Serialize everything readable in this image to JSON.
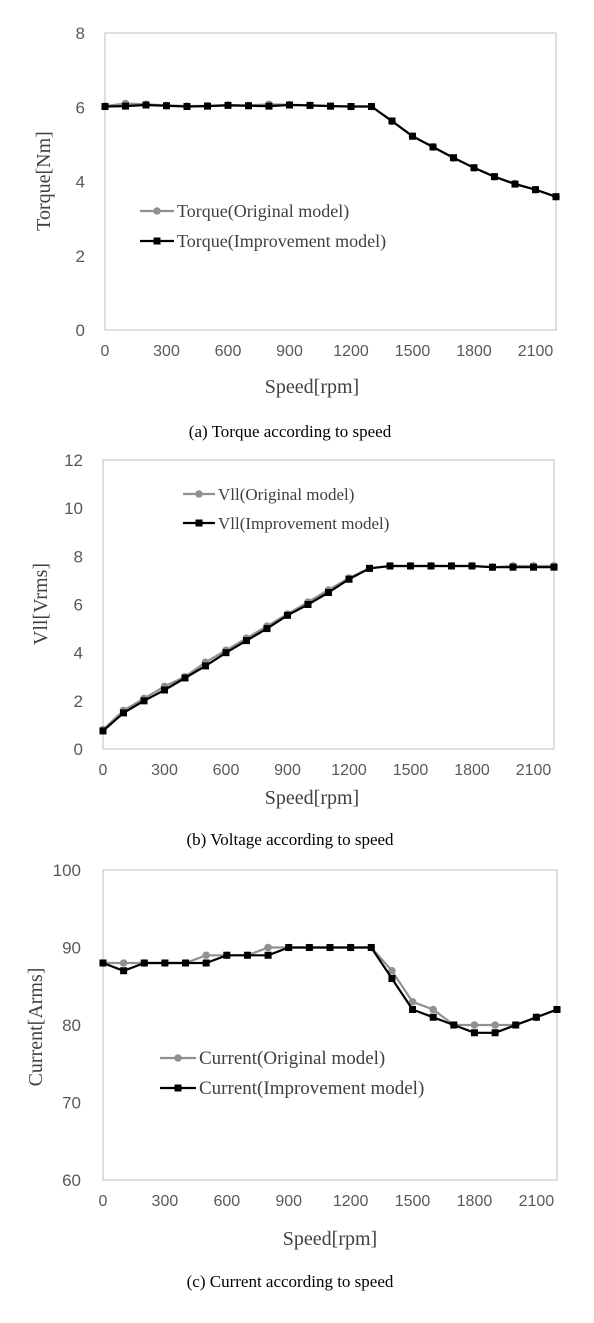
{
  "chart_data": [
    {
      "type": "line",
      "ylabel": "Torque[Nm]",
      "xlabel": "Speed[rpm]",
      "caption": "(a)  Torque  according  to  speed",
      "x": [
        0,
        100,
        200,
        300,
        400,
        500,
        600,
        700,
        800,
        900,
        1000,
        1100,
        1200,
        1300,
        1400,
        1500,
        1600,
        1700,
        1800,
        1900,
        2000,
        2100,
        2200
      ],
      "xticks": [
        "0",
        "300",
        "600",
        "900",
        "1200",
        "1500",
        "1800",
        "2100"
      ],
      "xlim": [
        0,
        2200
      ],
      "yticks": [
        "0",
        "2",
        "4",
        "6",
        "8"
      ],
      "ylim": [
        0,
        8
      ],
      "grid": false,
      "legend_position": "center-left",
      "series": [
        {
          "name": "Torque(Original model)",
          "color": "#909090",
          "marker": "circle",
          "values": [
            6.03,
            6.1,
            6.08,
            6.05,
            6.03,
            6.04,
            6.06,
            6.05,
            6.08,
            6.07,
            6.05,
            6.03,
            6.02,
            6.02,
            5.62,
            5.22,
            4.93,
            4.63,
            4.37,
            4.13,
            3.94,
            3.78,
            3.59
          ]
        },
        {
          "name": "Torque(Improvement model)",
          "color": "#000000",
          "marker": "square",
          "values": [
            6.02,
            6.03,
            6.06,
            6.04,
            6.02,
            6.03,
            6.05,
            6.04,
            6.03,
            6.06,
            6.05,
            6.03,
            6.02,
            6.02,
            5.63,
            5.22,
            4.93,
            4.64,
            4.37,
            4.13,
            3.93,
            3.78,
            3.59
          ]
        }
      ]
    },
    {
      "type": "line",
      "ylabel": "Vll[Vrms]",
      "xlabel": "Speed[rpm]",
      "caption": "(b)  Voltage  according  to  speed",
      "x": [
        0,
        100,
        200,
        300,
        400,
        500,
        600,
        700,
        800,
        900,
        1000,
        1100,
        1200,
        1300,
        1400,
        1500,
        1600,
        1700,
        1800,
        1900,
        2000,
        2100,
        2200
      ],
      "xticks": [
        "0",
        "300",
        "600",
        "900",
        "1200",
        "1500",
        "1800",
        "2100"
      ],
      "xlim": [
        0,
        2200
      ],
      "yticks": [
        "0",
        "2",
        "4",
        "6",
        "8",
        "10",
        "12"
      ],
      "ylim": [
        0,
        12
      ],
      "grid": false,
      "legend_position": "top-center",
      "series": [
        {
          "name": "Vll(Original model)",
          "color": "#909090",
          "marker": "circle",
          "values": [
            0.8,
            1.6,
            2.1,
            2.6,
            3.0,
            3.6,
            4.1,
            4.6,
            5.1,
            5.6,
            6.1,
            6.6,
            7.1,
            7.5,
            7.6,
            7.6,
            7.6,
            7.6,
            7.6,
            7.55,
            7.6,
            7.6,
            7.6
          ]
        },
        {
          "name": "Vll(Improvement model)",
          "color": "#000000",
          "marker": "square",
          "values": [
            0.75,
            1.5,
            2.0,
            2.45,
            2.95,
            3.45,
            4.0,
            4.5,
            5.0,
            5.55,
            6.0,
            6.5,
            7.05,
            7.5,
            7.6,
            7.6,
            7.6,
            7.6,
            7.6,
            7.55,
            7.55,
            7.55,
            7.55
          ]
        }
      ]
    },
    {
      "type": "line",
      "ylabel": "Current[Arms]",
      "xlabel": "Speed[rpm]",
      "caption": "(c)  Current  according  to  speed",
      "x": [
        0,
        100,
        200,
        300,
        400,
        500,
        600,
        700,
        800,
        900,
        1000,
        1100,
        1200,
        1300,
        1400,
        1500,
        1600,
        1700,
        1800,
        1900,
        2000,
        2100,
        2200
      ],
      "xticks": [
        "0",
        "300",
        "600",
        "900",
        "1200",
        "1500",
        "1800",
        "2100"
      ],
      "xlim": [
        0,
        2200
      ],
      "yticks": [
        "60",
        "70",
        "80",
        "90",
        "100"
      ],
      "ylim": [
        60,
        100
      ],
      "grid": false,
      "legend_position": "bottom-center",
      "series": [
        {
          "name": "Current(Original model)",
          "color": "#909090",
          "marker": "circle",
          "values": [
            88,
            88,
            88,
            88,
            88,
            89,
            89,
            89,
            90,
            90,
            90,
            90,
            90,
            90,
            87,
            83,
            82,
            80,
            80,
            80,
            80,
            81,
            82
          ]
        },
        {
          "name": "Current(Improvement model)",
          "color": "#000000",
          "marker": "square",
          "values": [
            88,
            87,
            88,
            88,
            88,
            88,
            89,
            89,
            89,
            90,
            90,
            90,
            90,
            90,
            86,
            82,
            81,
            80,
            79,
            79,
            80,
            81,
            82
          ]
        }
      ]
    }
  ]
}
